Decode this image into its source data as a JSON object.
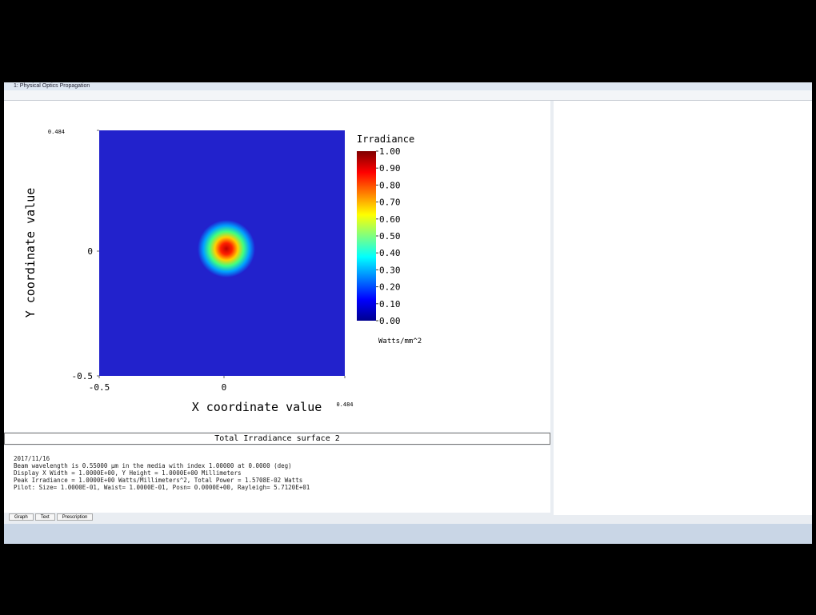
{
  "window": {
    "title": "1: Physical Optics Propagation"
  },
  "plot": {
    "xlabel": "X coordinate value",
    "ylabel": "Y coordinate value",
    "xlim": [
      -0.5,
      0.484
    ],
    "ylim": [
      -0.5,
      0.484
    ],
    "xticks": [
      -0.5,
      0,
      0.484
    ],
    "yticks": [
      -0.5,
      0,
      0.484
    ],
    "colorbar": {
      "title": "Irradiance",
      "unit": "Watts/mm^2",
      "lim": [
        0,
        1
      ],
      "ticks": [
        {
          "value": 1,
          "label": "1.00"
        },
        {
          "value": 0.9,
          "label": "0.90"
        },
        {
          "value": 0.8,
          "label": "0.80"
        },
        {
          "value": 0.7,
          "label": "0.70"
        },
        {
          "value": 0.6,
          "label": "0.60"
        },
        {
          "value": 0.5,
          "label": "0.50"
        },
        {
          "value": 0.4,
          "label": "0.40"
        },
        {
          "value": 0.3,
          "label": "0.30"
        },
        {
          "value": 0.2,
          "label": "0.20"
        },
        {
          "value": 0.1,
          "label": "0.10"
        },
        {
          "value": 0,
          "label": "0.00"
        }
      ]
    }
  },
  "text_panel": {
    "title": "Total Irradiance surface 2",
    "lines": [
      "2017/11/16",
      "Beam wavelength is 0.55000 µm in the media with index 1.00000 at 0.0000 (deg)",
      "Display X Width = 1.0000E+00, Y Height = 1.0000E+00 Millimeters",
      "Peak Irradiance = 1.0000E+00 Watts/Millimeters^2, Total Power = 1.5708E-02 Watts",
      "Pilot: Size= 1.0000E-01, Waist= 1.0000E-01, Posn= 0.0000E+00, Rayleigh= 5.7120E+01"
    ]
  },
  "tabs": [
    "Graph",
    "Text",
    "Prescription"
  ]
}
